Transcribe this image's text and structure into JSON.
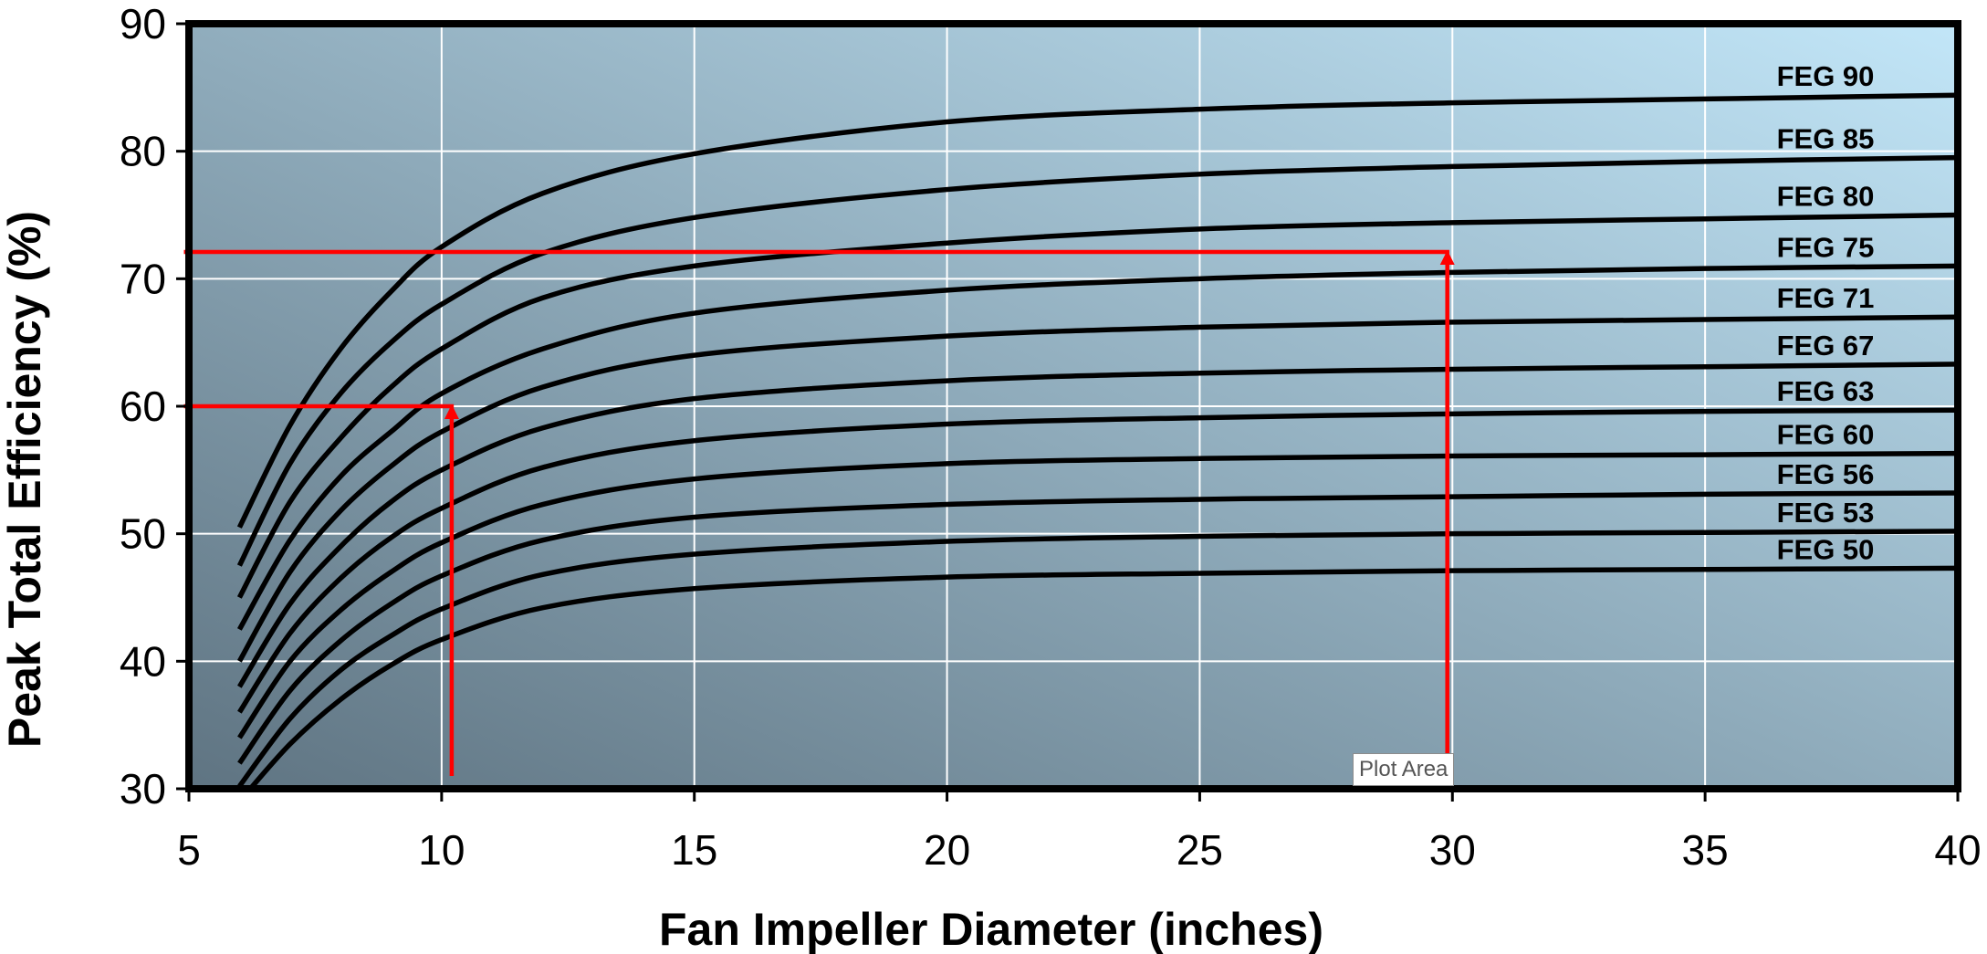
{
  "chart_data": {
    "type": "line",
    "xlabel": "Fan Impeller Diameter (inches)",
    "ylabel": "Peak Total Efficiency (%)",
    "xlim": [
      5,
      40
    ],
    "ylim": [
      30,
      90
    ],
    "x_ticks": [
      5,
      10,
      15,
      20,
      25,
      30,
      35,
      40
    ],
    "y_ticks": [
      30,
      40,
      50,
      60,
      70,
      80,
      90
    ],
    "grid": true,
    "background_gradient": [
      "#5f7482",
      "#c2e6f8"
    ],
    "line_color": "#000000",
    "guide_color": "#ff0000",
    "x": [
      6,
      7,
      8,
      9,
      10,
      12,
      15,
      20,
      25,
      30,
      35,
      40
    ],
    "series": [
      {
        "name": "FEG 90",
        "values": [
          50.5,
          58.5,
          64.5,
          69.0,
          72.5,
          76.7,
          79.8,
          82.3,
          83.3,
          83.8,
          84.1,
          84.4
        ]
      },
      {
        "name": "FEG 85",
        "values": [
          47.5,
          55.5,
          61.0,
          65.0,
          68.0,
          72.0,
          74.8,
          77.0,
          78.2,
          78.8,
          79.2,
          79.5
        ]
      },
      {
        "name": "FEG 80",
        "values": [
          45.0,
          52.5,
          57.5,
          61.5,
          64.5,
          68.5,
          71.0,
          72.8,
          73.9,
          74.4,
          74.7,
          75.0
        ]
      },
      {
        "name": "FEG 75",
        "values": [
          42.5,
          49.5,
          54.5,
          58.0,
          61.0,
          64.5,
          67.3,
          69.1,
          70.0,
          70.5,
          70.8,
          71.0
        ]
      },
      {
        "name": "FEG 71",
        "values": [
          40.0,
          47.0,
          51.8,
          55.3,
          58.0,
          61.5,
          64.0,
          65.5,
          66.2,
          66.6,
          66.8,
          67.0
        ]
      },
      {
        "name": "FEG 67",
        "values": [
          38.0,
          44.5,
          49.0,
          52.5,
          55.0,
          58.3,
          60.6,
          62.0,
          62.6,
          62.9,
          63.1,
          63.3
        ]
      },
      {
        "name": "FEG 63",
        "values": [
          36.0,
          42.2,
          46.5,
          49.7,
          52.0,
          55.2,
          57.3,
          58.6,
          59.1,
          59.4,
          59.6,
          59.7
        ]
      },
      {
        "name": "FEG 60",
        "values": [
          34.0,
          40.0,
          44.0,
          47.0,
          49.3,
          52.3,
          54.3,
          55.5,
          55.9,
          56.1,
          56.2,
          56.3
        ]
      },
      {
        "name": "FEG 56",
        "values": [
          32.0,
          37.7,
          41.6,
          44.5,
          46.7,
          49.5,
          51.3,
          52.3,
          52.7,
          52.9,
          53.1,
          53.2
        ]
      },
      {
        "name": "FEG 53",
        "values": [
          30.2,
          35.5,
          39.3,
          42.0,
          44.1,
          46.8,
          48.4,
          49.4,
          49.8,
          50.0,
          50.1,
          50.2
        ]
      },
      {
        "name": "FEG 50",
        "values": [
          29.0,
          33.5,
          37.0,
          39.7,
          41.7,
          44.2,
          45.7,
          46.6,
          46.9,
          47.1,
          47.2,
          47.3
        ]
      }
    ],
    "annotations": [
      {
        "type": "arrow-path",
        "color": "#ff0000",
        "points": [
          [
            10.2,
            31
          ],
          [
            10.2,
            60
          ],
          [
            4.9,
            60
          ]
        ],
        "arrow_at": [
          10.2,
          60
        ]
      },
      {
        "type": "arrow-path",
        "color": "#ff0000",
        "points": [
          [
            29.9,
            30.6
          ],
          [
            29.9,
            72.1
          ],
          [
            4.9,
            72.1
          ]
        ],
        "arrow_at": [
          29.9,
          72.1
        ]
      }
    ]
  },
  "tooltip": {
    "text": "Plot Area"
  }
}
